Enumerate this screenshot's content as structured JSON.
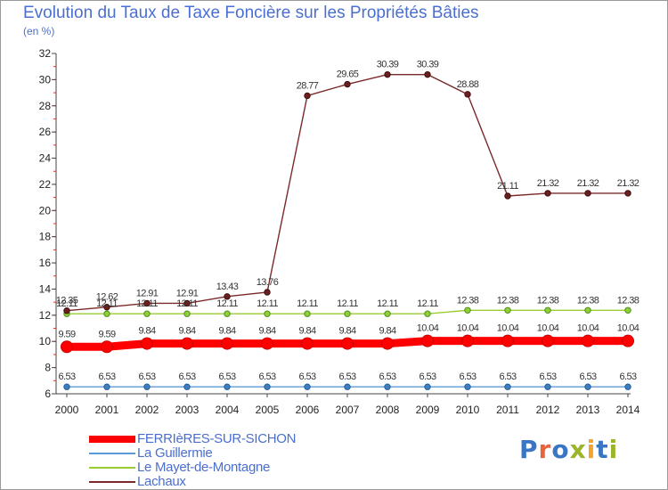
{
  "chart_data": {
    "type": "line",
    "title": "Evolution du Taux de Taxe Foncière sur les Propriétés Bâties",
    "subtitle": "(en %)",
    "xlabel": "",
    "ylabel": "",
    "ylim": [
      6,
      32
    ],
    "yticks": [
      "6",
      "8",
      "10",
      "12",
      "14",
      "16",
      "18",
      "20",
      "22",
      "24",
      "26",
      "28",
      "30",
      "32"
    ],
    "categories": [
      "2000",
      "2001",
      "2002",
      "2003",
      "2004",
      "2005",
      "2006",
      "2007",
      "2008",
      "2009",
      "2010",
      "2011",
      "2012",
      "2013",
      "2014"
    ],
    "series": [
      {
        "name": "FERRIèRES-SUR-SICHON",
        "color": "#ff0000",
        "values": [
          9.59,
          9.59,
          9.84,
          9.84,
          9.84,
          9.84,
          9.84,
          9.84,
          9.84,
          10.04,
          10.04,
          10.04,
          10.04,
          10.04,
          10.04
        ],
        "labels": [
          "9.59",
          "9.59",
          "9.84",
          "9.84",
          "9.84",
          "9.84",
          "9.84",
          "9.84",
          "9.84",
          "10.04",
          "10.04",
          "10.04",
          "10.04",
          "10.04",
          "10.04"
        ]
      },
      {
        "name": "La Guillermie",
        "color": "#5b9bd5",
        "values": [
          6.53,
          6.53,
          6.53,
          6.53,
          6.53,
          6.53,
          6.53,
          6.53,
          6.53,
          6.53,
          6.53,
          6.53,
          6.53,
          6.53,
          6.53
        ],
        "labels": [
          "6.53",
          "6.53",
          "6.53",
          "6.53",
          "6.53",
          "6.53",
          "6.53",
          "6.53",
          "6.53",
          "6.53",
          "6.53",
          "6.53",
          "6.53",
          "6.53",
          "6.53"
        ]
      },
      {
        "name": "Le Mayet-de-Montagne",
        "color": "#9acd32",
        "values": [
          12.11,
          12.11,
          12.11,
          12.11,
          12.11,
          12.11,
          12.11,
          12.11,
          12.11,
          12.11,
          12.38,
          12.38,
          12.38,
          12.38,
          12.38
        ],
        "labels": [
          "12.11",
          "12.11",
          "12.11",
          "12.11",
          "12.11",
          "12.11",
          "12.11",
          "12.11",
          "12.11",
          "12.11",
          "12.38",
          "12.38",
          "12.38",
          "12.38",
          "12.38"
        ]
      },
      {
        "name": "Lachaux",
        "color": "#7b2a2a",
        "values": [
          12.35,
          12.62,
          12.91,
          12.91,
          13.43,
          13.76,
          28.77,
          29.65,
          30.39,
          30.39,
          28.88,
          21.11,
          21.32,
          21.32,
          21.32
        ],
        "labels": [
          "12.35",
          "12.62",
          "12.91",
          "12.91",
          "13.43",
          "13.76",
          "28.77",
          "29.65",
          "30.39",
          "30.39",
          "28.88",
          "21.11",
          "21.32",
          "21.32",
          "21.32"
        ]
      }
    ],
    "legend": [
      "FERRIèRES-SUR-SICHON",
      "La Guillermie",
      "Le Mayet-de-Montagne",
      "Lachaux"
    ],
    "legend_position": "bottom-left",
    "grid": false
  },
  "logo": {
    "text": "Proxiti",
    "colors": [
      "#3a76c4",
      "#e8643a",
      "#3a76c4",
      "#9ab52a",
      "#f2a52e",
      "#3a76c4",
      "#9ab52a"
    ]
  }
}
